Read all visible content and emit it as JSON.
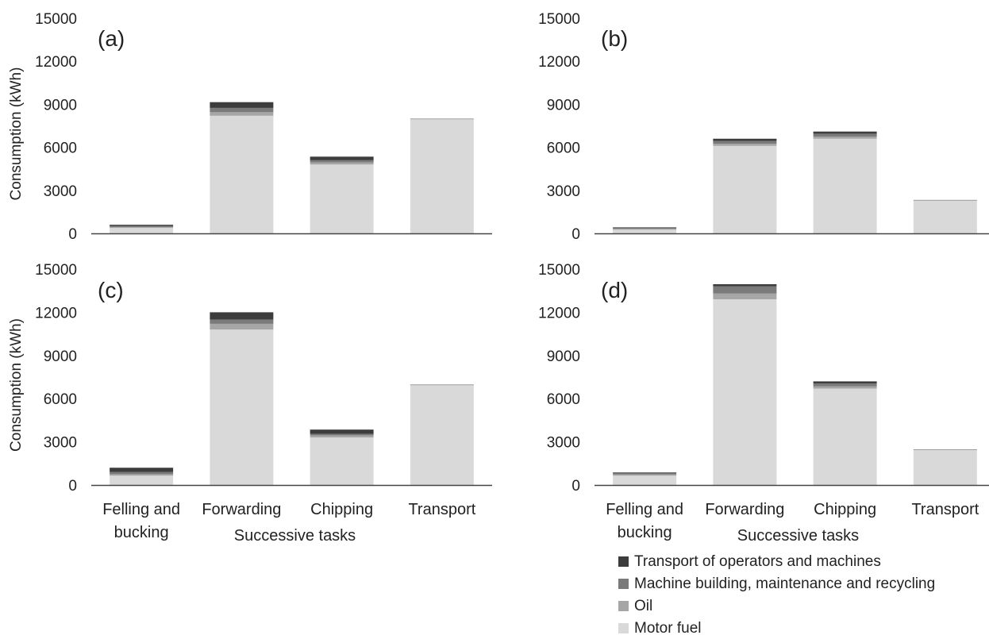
{
  "chart_data": [
    {
      "type": "bar",
      "stacked": true,
      "panel_label": "(a)",
      "categories": [
        "Felling and bucking",
        "Forwarding",
        "Chipping",
        "Transport"
      ],
      "series": [
        {
          "name": "Motor fuel",
          "values": [
            380,
            8200,
            4800,
            7950
          ]
        },
        {
          "name": "Oil",
          "values": [
            50,
            250,
            150,
            20
          ]
        },
        {
          "name": "Machine building, maintenance and recycling",
          "values": [
            80,
            300,
            150,
            20
          ]
        },
        {
          "name": "Transport of operators and machines",
          "values": [
            90,
            400,
            250,
            10
          ]
        }
      ],
      "ylabel": "Consumption (kWh)",
      "xlabel": "",
      "yticks": [
        0,
        3000,
        6000,
        9000,
        12000,
        15000
      ],
      "ylim": [
        0,
        15000
      ]
    },
    {
      "type": "bar",
      "stacked": true,
      "panel_label": "(b)",
      "categories": [
        "Felling and bucking",
        "Forwarding",
        "Chipping",
        "Transport"
      ],
      "series": [
        {
          "name": "Motor fuel",
          "values": [
            260,
            6100,
            6600,
            2280
          ]
        },
        {
          "name": "Oil",
          "values": [
            50,
            150,
            150,
            20
          ]
        },
        {
          "name": "Machine building, maintenance and recycling",
          "values": [
            60,
            200,
            200,
            20
          ]
        },
        {
          "name": "Transport of operators and machines",
          "values": [
            50,
            150,
            150,
            10
          ]
        }
      ],
      "ylabel": "",
      "xlabel": "",
      "yticks": [
        0,
        3000,
        6000,
        9000,
        12000,
        15000
      ],
      "ylim": [
        0,
        15000
      ]
    },
    {
      "type": "bar",
      "stacked": true,
      "panel_label": "(c)",
      "categories": [
        "Felling and bucking",
        "Forwarding",
        "Chipping",
        "Transport"
      ],
      "series": [
        {
          "name": "Motor fuel",
          "values": [
            650,
            10800,
            3300,
            6930
          ]
        },
        {
          "name": "Oil",
          "values": [
            100,
            400,
            150,
            20
          ]
        },
        {
          "name": "Machine building, maintenance and recycling",
          "values": [
            150,
            300,
            100,
            20
          ]
        },
        {
          "name": "Transport of operators and machines",
          "values": [
            300,
            500,
            300,
            10
          ]
        }
      ],
      "ylabel": "Consumption (kWh)",
      "xlabel": "Successive tasks",
      "yticks": [
        0,
        3000,
        6000,
        9000,
        12000,
        15000
      ],
      "ylim": [
        0,
        15000
      ]
    },
    {
      "type": "bar",
      "stacked": true,
      "panel_label": "(d)",
      "categories": [
        "Felling and bucking",
        "Forwarding",
        "Chipping",
        "Transport"
      ],
      "series": [
        {
          "name": "Motor fuel",
          "values": [
            650,
            12900,
            6700,
            2430
          ]
        },
        {
          "name": "Oil",
          "values": [
            80,
            400,
            150,
            20
          ]
        },
        {
          "name": "Machine building, maintenance and recycling",
          "values": [
            80,
            500,
            200,
            20
          ]
        },
        {
          "name": "Transport of operators and machines",
          "values": [
            60,
            150,
            150,
            10
          ]
        }
      ],
      "ylabel": "",
      "xlabel": "Successive tasks",
      "yticks": [
        0,
        3000,
        6000,
        9000,
        12000,
        15000
      ],
      "ylim": [
        0,
        15000
      ]
    }
  ],
  "legend": {
    "items": [
      {
        "label": "Transport of operators and machines",
        "color": "#3c3c3c"
      },
      {
        "label": "Machine building, maintenance and recycling",
        "color": "#7a7a7a"
      },
      {
        "label": "Oil",
        "color": "#a6a6a6"
      },
      {
        "label": "Motor fuel",
        "color": "#d9d9d9"
      }
    ]
  },
  "colors": {
    "Motor fuel": "#d9d9d9",
    "Oil": "#a6a6a6",
    "Machine building, maintenance and recycling": "#7a7a7a",
    "Transport of operators and machines": "#3c3c3c",
    "axis": "#444444"
  }
}
